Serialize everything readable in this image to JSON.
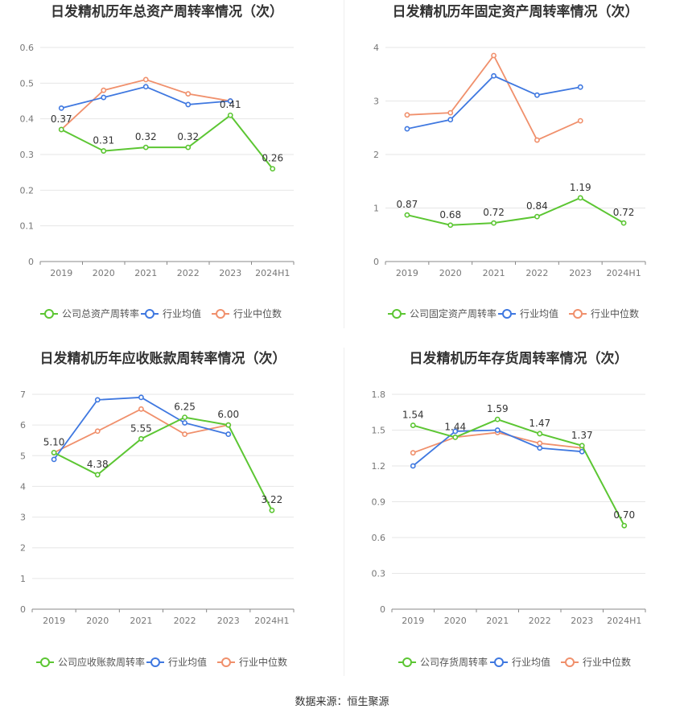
{
  "source": "数据来源：恒生聚源",
  "colors": {
    "company": "#5cc633",
    "avg": "#3f78e0",
    "median": "#f0906c"
  },
  "chart_data": [
    {
      "type": "line",
      "title": "日发精机历年总资产周转率情况（次）",
      "categories": [
        "2019",
        "2020",
        "2021",
        "2022",
        "2023",
        "2024H1"
      ],
      "ylim": [
        0,
        0.6
      ],
      "yticks": [
        "0",
        "0.1",
        "0.2",
        "0.3",
        "0.4",
        "0.5",
        "0.6"
      ],
      "label_decimals": 2,
      "series": [
        {
          "name": "公司总资产周转率",
          "values": [
            0.37,
            0.31,
            0.32,
            0.32,
            0.41,
            0.26
          ]
        },
        {
          "name": "行业均值",
          "values": [
            0.43,
            0.46,
            0.49,
            0.44,
            0.45,
            null
          ]
        },
        {
          "name": "行业中位数",
          "values": [
            0.37,
            0.48,
            0.51,
            0.47,
            0.45,
            null
          ]
        }
      ]
    },
    {
      "type": "line",
      "title": "日发精机历年固定资产周转率情况（次）",
      "categories": [
        "2019",
        "2020",
        "2021",
        "2022",
        "2023",
        "2024H1"
      ],
      "ylim": [
        0,
        4
      ],
      "yticks": [
        "0",
        "1",
        "2",
        "3",
        "4"
      ],
      "label_decimals": 2,
      "series": [
        {
          "name": "公司固定资产周转率",
          "values": [
            0.87,
            0.68,
            0.72,
            0.84,
            1.19,
            0.72
          ]
        },
        {
          "name": "行业均值",
          "values": [
            2.48,
            2.65,
            3.47,
            3.11,
            3.26,
            null
          ]
        },
        {
          "name": "行业中位数",
          "values": [
            2.74,
            2.78,
            3.85,
            2.27,
            2.63,
            null
          ]
        }
      ]
    },
    {
      "type": "line",
      "title": "日发精机历年应收账款周转率情况（次）",
      "categories": [
        "2019",
        "2020",
        "2021",
        "2022",
        "2023",
        "2024H1"
      ],
      "ylim": [
        0,
        7
      ],
      "yticks": [
        "0",
        "1",
        "2",
        "3",
        "4",
        "5",
        "6",
        "7"
      ],
      "label_decimals": 2,
      "series": [
        {
          "name": "公司应收账款周转率",
          "values": [
            5.1,
            4.38,
            5.55,
            6.25,
            6.0,
            3.22
          ]
        },
        {
          "name": "行业均值",
          "values": [
            4.88,
            6.82,
            6.9,
            6.07,
            5.7,
            null
          ]
        },
        {
          "name": "行业中位数",
          "values": [
            5.1,
            5.8,
            6.52,
            5.7,
            6.0,
            null
          ]
        }
      ]
    },
    {
      "type": "line",
      "title": "日发精机历年存货周转率情况（次）",
      "categories": [
        "2019",
        "2020",
        "2021",
        "2022",
        "2023",
        "2024H1"
      ],
      "ylim": [
        0,
        1.8
      ],
      "yticks": [
        "0",
        "0.3",
        "0.6",
        "0.9",
        "1.2",
        "1.5",
        "1.8"
      ],
      "label_decimals": 2,
      "series": [
        {
          "name": "公司存货周转率",
          "values": [
            1.54,
            1.44,
            1.59,
            1.47,
            1.37,
            0.7
          ]
        },
        {
          "name": "行业均值",
          "values": [
            1.2,
            1.49,
            1.5,
            1.35,
            1.32,
            null
          ]
        },
        {
          "name": "行业中位数",
          "values": [
            1.31,
            1.44,
            1.48,
            1.39,
            1.35,
            null
          ]
        }
      ]
    }
  ]
}
